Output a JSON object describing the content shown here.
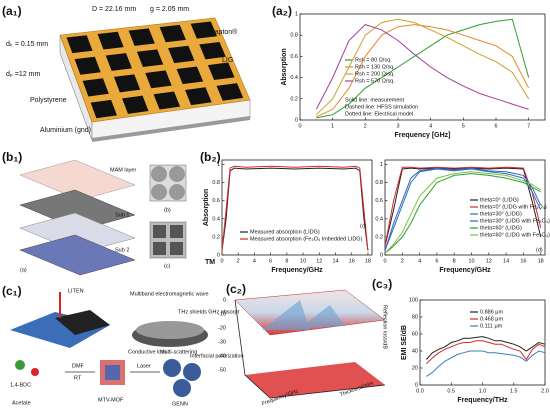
{
  "labels": {
    "a1": "(a₁)",
    "a2": "(a₂)",
    "b1": "(b₁)",
    "b2": "(b₂)",
    "c1": "(c₁)",
    "c2": "(c₂)",
    "c3": "(c₃)"
  },
  "a1": {
    "period": "D = 22.16 mm",
    "gap": "g = 2.05 mm",
    "kapton": "Kapton®",
    "lig": "LIG",
    "dk": "dₖ = 0.15 mm",
    "dp": "dₚ =12 mm",
    "substrate": "Polystyrene",
    "ground": "Aluminium (gnd)"
  },
  "b1": {
    "top": "MAM layer",
    "sub1": "Sub 1",
    "sub2": "Sub 2",
    "fa": "(a)",
    "fb": "(b)",
    "fc": "(c)"
  },
  "c1": {
    "liten": "LITEN",
    "wave": "Multiband electromagnetic wave",
    "shield": "THz shields GHz absorpt",
    "loss": "Conductive loss",
    "scatter": "Multi-scattering",
    "polar": "Interfacial polarization",
    "dmf": "DMF",
    "rt": "RT",
    "bdc": "1,4-BDC",
    "acetate": "Acetate",
    "mof": "MTV-MOF",
    "laser": "Laser",
    "genn": "GENN"
  },
  "c2": {
    "xlabel": "Frequency/GHz",
    "ylabel": "Thickness/mm",
    "zlabel": "Reflection loss/dB",
    "zticks": [
      "0",
      "-10",
      "-20",
      "-30",
      "-40",
      "-50"
    ]
  },
  "chart_data": [
    {
      "type": "line",
      "xlabel": "Frequency [GHz]",
      "ylabel": "Absorption",
      "x": [
        0.5,
        1,
        1.5,
        2,
        2.5,
        3,
        3.5,
        4,
        4.5,
        5,
        5.5,
        6,
        6.5,
        7
      ],
      "xlim": [
        0,
        7.5
      ],
      "xticks": [
        0,
        1,
        2,
        3,
        4,
        5,
        6,
        7
      ],
      "ylim": [
        0,
        1
      ],
      "yticks": [
        0,
        0.2,
        0.4,
        0.6,
        0.8,
        1
      ],
      "annotations": [
        "Solid line: measurement",
        "Dashed line: HFSS simulation",
        "Dotted line: Electrical model"
      ],
      "series": [
        {
          "name": "Rsh = 80 Ω/sq.",
          "color": "#2ca02c",
          "values": [
            0.02,
            0.05,
            0.15,
            0.3,
            0.4,
            0.5,
            0.6,
            0.7,
            0.8,
            0.85,
            0.9,
            0.93,
            0.95,
            0.4
          ]
        },
        {
          "name": "Rsh = 130 Ω/sq.",
          "color": "#e8862a",
          "values": [
            0.03,
            0.1,
            0.3,
            0.6,
            0.8,
            0.88,
            0.9,
            0.88,
            0.85,
            0.8,
            0.75,
            0.7,
            0.6,
            0.3
          ]
        },
        {
          "name": "Rsh = 200 Ω/sq.",
          "color": "#c9a227",
          "values": [
            0.05,
            0.2,
            0.5,
            0.8,
            0.92,
            0.95,
            0.92,
            0.85,
            0.78,
            0.7,
            0.62,
            0.55,
            0.45,
            0.2
          ]
        },
        {
          "name": "Rsh = 570 Ω/sq.",
          "color": "#a0449b",
          "values": [
            0.1,
            0.4,
            0.75,
            0.9,
            0.85,
            0.75,
            0.62,
            0.5,
            0.4,
            0.32,
            0.25,
            0.2,
            0.15,
            0.1
          ]
        }
      ]
    },
    {
      "type": "line",
      "xlabel": "Frequency/GHz",
      "ylabel": "Absorption",
      "x": [
        0,
        0.5,
        1,
        1.5,
        3,
        6,
        9,
        12,
        15,
        16.5,
        17,
        17.5,
        18
      ],
      "xlim": [
        0,
        18.5
      ],
      "xticks": [
        0,
        2,
        4,
        6,
        8,
        10,
        12,
        14,
        16,
        18
      ],
      "ylim": [
        0,
        1.05
      ],
      "yticks": [
        0,
        0.2,
        0.4,
        0.6,
        0.8,
        1
      ],
      "annotations": [
        "(c)",
        "TM"
      ],
      "series": [
        {
          "name": "Measured absorption (LIDG)",
          "color": "#222222",
          "values": [
            0.05,
            0.4,
            0.93,
            0.96,
            0.95,
            0.96,
            0.95,
            0.96,
            0.95,
            0.96,
            0.93,
            0.4,
            0.05
          ]
        },
        {
          "name": "Measured absorption (Fe₃O₄ Imbedded LIDG)",
          "color": "#d62728",
          "values": [
            0.05,
            0.5,
            0.96,
            0.98,
            0.97,
            0.98,
            0.97,
            0.98,
            0.97,
            0.98,
            0.96,
            0.5,
            0.05
          ]
        }
      ]
    },
    {
      "type": "line",
      "xlabel": "Frequency/GHz",
      "x": [
        0,
        1,
        2,
        3,
        4,
        6,
        8,
        10,
        12,
        14,
        16,
        17,
        18
      ],
      "xlim": [
        0,
        18.5
      ],
      "xticks": [
        0,
        2,
        4,
        6,
        8,
        10,
        12,
        14,
        16,
        18
      ],
      "ylim": [
        0,
        1.05
      ],
      "yticks": [
        0,
        0.2,
        0.4,
        0.6,
        0.8,
        1
      ],
      "annotations": [
        "(d)"
      ],
      "series": [
        {
          "name": "theta=0° (LIDG)",
          "color": "#222222",
          "values": [
            0.1,
            0.5,
            0.95,
            0.96,
            0.95,
            0.96,
            0.95,
            0.96,
            0.95,
            0.96,
            0.95,
            0.6,
            0.2
          ]
        },
        {
          "name": "theta=0° (LIDG with Fe₃O₄)",
          "color": "#d62728",
          "values": [
            0.1,
            0.6,
            0.97,
            0.97,
            0.96,
            0.97,
            0.96,
            0.97,
            0.96,
            0.97,
            0.96,
            0.7,
            0.3
          ]
        },
        {
          "name": "theta=30° (LIDG)",
          "color": "#1f77b4",
          "values": [
            0.05,
            0.3,
            0.55,
            0.8,
            0.92,
            0.95,
            0.93,
            0.95,
            0.92,
            0.9,
            0.85,
            0.7,
            0.5
          ]
        },
        {
          "name": "theta=30° (LIDG with Fe₃O₄)",
          "color": "#3a5fcd",
          "values": [
            0.05,
            0.35,
            0.6,
            0.85,
            0.93,
            0.96,
            0.94,
            0.96,
            0.93,
            0.92,
            0.88,
            0.75,
            0.55
          ]
        },
        {
          "name": "theta=60° (LIDG)",
          "color": "#2ca02c",
          "values": [
            0.02,
            0.1,
            0.2,
            0.35,
            0.55,
            0.8,
            0.88,
            0.9,
            0.88,
            0.85,
            0.8,
            0.75,
            0.7
          ]
        },
        {
          "name": "theta=60° (LIDG with Fe₃O₄)",
          "color": "#7fbf3f",
          "values": [
            0.02,
            0.12,
            0.25,
            0.45,
            0.65,
            0.85,
            0.9,
            0.92,
            0.9,
            0.88,
            0.82,
            0.78,
            0.72
          ]
        }
      ]
    },
    {
      "type": "line",
      "xlabel": "Frequency/THz",
      "ylabel": "EMI SE/dB",
      "x": [
        0.1,
        0.2,
        0.3,
        0.4,
        0.5,
        0.6,
        0.7,
        0.8,
        0.9,
        1.0,
        1.1,
        1.2,
        1.3,
        1.4,
        1.5,
        1.6,
        1.7,
        1.8,
        1.9,
        2.0
      ],
      "xlim": [
        0,
        2
      ],
      "xticks": [
        {
          "value": 0,
          "label": "0.0"
        },
        0.5,
        {
          "value": 1,
          "label": "1.0"
        },
        1.5,
        {
          "value": 2,
          "label": "2.0"
        }
      ],
      "ylim": [
        0,
        100
      ],
      "yticks": [
        0,
        20,
        40,
        60,
        80,
        100
      ],
      "series": [
        {
          "name": "0.886 μm",
          "color": "#222222",
          "values": [
            30,
            38,
            42,
            45,
            50,
            52,
            55,
            55,
            56,
            57,
            55,
            52,
            52,
            50,
            48,
            45,
            40,
            45,
            50,
            48
          ]
        },
        {
          "name": "0.468 μm",
          "color": "#d62728",
          "values": [
            25,
            32,
            38,
            42,
            45,
            48,
            50,
            50,
            52,
            52,
            50,
            48,
            48,
            45,
            42,
            40,
            30,
            42,
            48,
            45
          ]
        },
        {
          "name": "0.111 μm",
          "color": "#3a7fb8",
          "values": [
            10,
            15,
            22,
            28,
            32,
            36,
            38,
            40,
            40,
            40,
            38,
            38,
            37,
            36,
            35,
            33,
            28,
            35,
            40,
            38
          ]
        }
      ]
    }
  ]
}
